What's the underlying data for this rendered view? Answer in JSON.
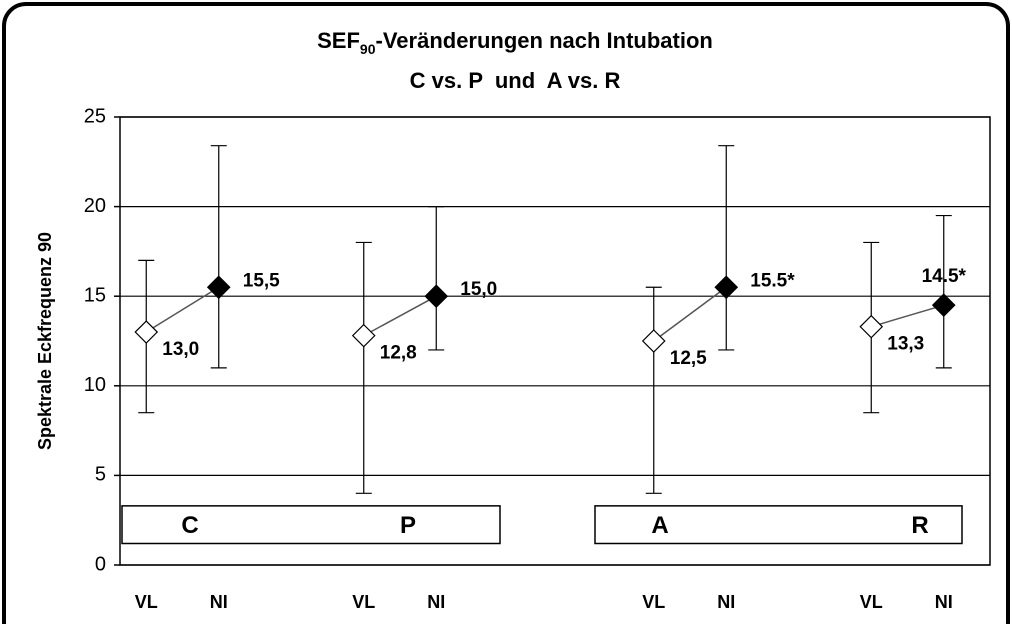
{
  "chart_data": {
    "type": "errorbar",
    "title": {
      "main": "SEF",
      "subscript": "90",
      "rest": "-Veränderungen nach Intubation"
    },
    "subtitle": "C vs. P  und  A vs. R",
    "y_label": "Spektrale Eckfrequenz 90",
    "categories": [
      "VL",
      "NI",
      null,
      "VL",
      "NI",
      null,
      null,
      "VL",
      "NI",
      null,
      "VL",
      "NI"
    ],
    "values": [
      13.0,
      15.5,
      null,
      12.8,
      15.0,
      null,
      null,
      12.5,
      15.5,
      null,
      13.3,
      14.5
    ],
    "value_labels": [
      "13,0",
      "15,5",
      null,
      "12,8",
      "15,0",
      null,
      null,
      "12,5",
      "15.5*",
      null,
      "13,3",
      "14.5*"
    ],
    "low": [
      8.5,
      11,
      null,
      4,
      12,
      null,
      null,
      4,
      12,
      null,
      8.5,
      11
    ],
    "high": [
      17,
      23.4,
      null,
      18,
      20,
      null,
      null,
      15.5,
      23.4,
      null,
      18,
      19.5
    ],
    "colors": [
      "#ffffff",
      "#000000",
      null,
      "#ffffff",
      "#000000",
      null,
      null,
      "#ffffff",
      "#000000",
      null,
      "#ffffff",
      "#000000"
    ],
    "groups": [
      {
        "labels": [
          "C",
          "P"
        ]
      },
      {
        "labels": [
          "A",
          "R"
        ]
      }
    ],
    "ylim": [
      0,
      25
    ],
    "yticks": [
      0,
      5,
      10,
      15,
      20,
      25
    ],
    "grid": true
  }
}
